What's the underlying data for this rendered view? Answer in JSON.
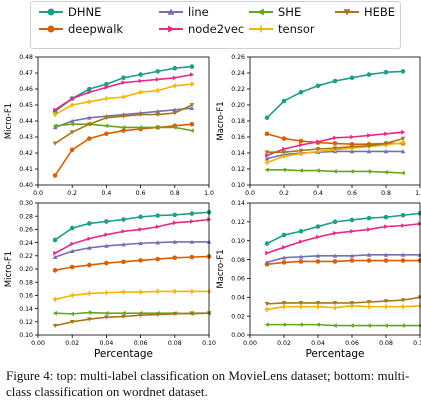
{
  "legend": [
    {
      "name": "DHNE",
      "color": "#1f9e89",
      "marker": "circle"
    },
    {
      "name": "deepwalk",
      "color": "#d95f02",
      "marker": "circle"
    },
    {
      "name": "line",
      "color": "#7570b3",
      "marker": "triangle-up"
    },
    {
      "name": "node2vec",
      "color": "#e7298a",
      "marker": "triangle-right"
    },
    {
      "name": "SHE",
      "color": "#66a61e",
      "marker": "triangle-left"
    },
    {
      "name": "tensor",
      "color": "#f5b400",
      "marker": "plus"
    },
    {
      "name": "HEBE",
      "color": "#a6761d",
      "marker": "triangle-down"
    }
  ],
  "caption": "Figure 4: top: multi-label classification on MovieLens dataset; bottom: multi-class classification on wordnet dataset.",
  "chart_data": [
    {
      "type": "line",
      "xlabel": "",
      "ylabel": "Micro-F1",
      "xlim": [
        0,
        1.0
      ],
      "ylim": [
        0.4,
        0.48
      ],
      "xticks": [
        "0.0",
        "0.2",
        "0.4",
        "0.6",
        "0.8",
        "1.0"
      ],
      "yticks": [
        "0.40",
        "0.41",
        "0.42",
        "0.43",
        "0.44",
        "0.45",
        "0.46",
        "0.47",
        "0.48"
      ],
      "x": [
        0.1,
        0.2,
        0.3,
        0.4,
        0.5,
        0.6,
        0.7,
        0.8,
        0.9
      ],
      "series": [
        {
          "name": "DHNE",
          "values": [
            0.446,
            0.454,
            0.46,
            0.463,
            0.467,
            0.469,
            0.471,
            0.473,
            0.474
          ]
        },
        {
          "name": "deepwalk",
          "values": [
            0.406,
            0.422,
            0.429,
            0.432,
            0.434,
            0.435,
            0.436,
            0.437,
            0.438
          ]
        },
        {
          "name": "line",
          "values": [
            0.436,
            0.44,
            0.442,
            0.443,
            0.444,
            0.445,
            0.446,
            0.447,
            0.448
          ]
        },
        {
          "name": "node2vec",
          "values": [
            0.447,
            0.454,
            0.458,
            0.461,
            0.464,
            0.465,
            0.466,
            0.467,
            0.469
          ]
        },
        {
          "name": "SHE",
          "values": [
            0.437,
            0.438,
            0.438,
            0.437,
            0.436,
            0.436,
            0.436,
            0.436,
            0.434
          ]
        },
        {
          "name": "tensor",
          "values": [
            0.444,
            0.45,
            0.452,
            0.454,
            0.455,
            0.458,
            0.459,
            0.462,
            0.463
          ]
        },
        {
          "name": "HEBE",
          "values": [
            0.426,
            0.433,
            0.438,
            0.442,
            0.443,
            0.444,
            0.444,
            0.445,
            0.45
          ]
        }
      ]
    },
    {
      "type": "line",
      "xlabel": "",
      "ylabel": "Macro-F1",
      "xlim": [
        0,
        1.0
      ],
      "ylim": [
        0.1,
        0.26
      ],
      "xticks": [
        "0.0",
        "0.2",
        "0.4",
        "0.6",
        "0.8",
        "1.0"
      ],
      "yticks": [
        "0.10",
        "0.12",
        "0.14",
        "0.16",
        "0.18",
        "0.20",
        "0.22",
        "0.24",
        "0.26"
      ],
      "x": [
        0.1,
        0.2,
        0.3,
        0.4,
        0.5,
        0.6,
        0.7,
        0.8,
        0.9
      ],
      "series": [
        {
          "name": "DHNE",
          "values": [
            0.184,
            0.205,
            0.216,
            0.224,
            0.23,
            0.234,
            0.238,
            0.241,
            0.242
          ]
        },
        {
          "name": "deepwalk",
          "values": [
            0.164,
            0.158,
            0.155,
            0.153,
            0.152,
            0.151,
            0.151,
            0.152,
            0.152
          ]
        },
        {
          "name": "line",
          "values": [
            0.133,
            0.138,
            0.14,
            0.141,
            0.142,
            0.142,
            0.142,
            0.142,
            0.142
          ]
        },
        {
          "name": "node2vec",
          "values": [
            0.137,
            0.145,
            0.15,
            0.154,
            0.159,
            0.16,
            0.162,
            0.164,
            0.166
          ]
        },
        {
          "name": "SHE",
          "values": [
            0.119,
            0.119,
            0.118,
            0.118,
            0.117,
            0.117,
            0.117,
            0.116,
            0.115
          ]
        },
        {
          "name": "tensor",
          "values": [
            0.128,
            0.136,
            0.139,
            0.142,
            0.144,
            0.146,
            0.148,
            0.15,
            0.153
          ]
        },
        {
          "name": "HEBE",
          "values": [
            0.141,
            0.141,
            0.143,
            0.145,
            0.146,
            0.148,
            0.149,
            0.152,
            0.158
          ]
        }
      ]
    },
    {
      "type": "line",
      "xlabel": "Percentage",
      "ylabel": "Micro-F1",
      "xlim": [
        0,
        0.1
      ],
      "ylim": [
        0.1,
        0.3
      ],
      "xticks": [
        "0.00",
        "0.02",
        "0.04",
        "0.06",
        "0.08",
        "0.10"
      ],
      "yticks": [
        "0.10",
        "0.12",
        "0.14",
        "0.16",
        "0.18",
        "0.20",
        "0.22",
        "0.24",
        "0.26",
        "0.28",
        "0.30"
      ],
      "x": [
        0.01,
        0.02,
        0.03,
        0.04,
        0.05,
        0.06,
        0.07,
        0.08,
        0.09,
        0.1
      ],
      "series": [
        {
          "name": "DHNE",
          "values": [
            0.244,
            0.262,
            0.269,
            0.272,
            0.275,
            0.279,
            0.281,
            0.282,
            0.284,
            0.286
          ]
        },
        {
          "name": "deepwalk",
          "values": [
            0.198,
            0.203,
            0.206,
            0.209,
            0.211,
            0.213,
            0.215,
            0.217,
            0.218,
            0.219
          ]
        },
        {
          "name": "line",
          "values": [
            0.218,
            0.227,
            0.232,
            0.235,
            0.237,
            0.239,
            0.24,
            0.241,
            0.241,
            0.241
          ]
        },
        {
          "name": "node2vec",
          "values": [
            0.224,
            0.238,
            0.246,
            0.252,
            0.257,
            0.26,
            0.264,
            0.27,
            0.272,
            0.275
          ]
        },
        {
          "name": "SHE",
          "values": [
            0.133,
            0.132,
            0.134,
            0.133,
            0.133,
            0.133,
            0.133,
            0.133,
            0.132,
            0.133
          ]
        },
        {
          "name": "tensor",
          "values": [
            0.154,
            0.16,
            0.163,
            0.164,
            0.165,
            0.165,
            0.166,
            0.166,
            0.166,
            0.166
          ]
        },
        {
          "name": "HEBE",
          "values": [
            0.114,
            0.12,
            0.124,
            0.127,
            0.128,
            0.13,
            0.131,
            0.132,
            0.133,
            0.133
          ]
        }
      ]
    },
    {
      "type": "line",
      "xlabel": "Percentage",
      "ylabel": "Macro-F1",
      "xlim": [
        0,
        0.1
      ],
      "ylim": [
        0.0,
        0.14
      ],
      "xticks": [
        "0.00",
        "0.02",
        "0.04",
        "0.06",
        "0.08",
        "0.10"
      ],
      "yticks": [
        "0.00",
        "0.02",
        "0.04",
        "0.06",
        "0.08",
        "0.10",
        "0.12",
        "0.14"
      ],
      "x": [
        0.01,
        0.02,
        0.03,
        0.04,
        0.05,
        0.06,
        0.07,
        0.08,
        0.09,
        0.1
      ],
      "series": [
        {
          "name": "DHNE",
          "values": [
            0.097,
            0.106,
            0.11,
            0.115,
            0.12,
            0.122,
            0.124,
            0.125,
            0.127,
            0.129
          ]
        },
        {
          "name": "deepwalk",
          "values": [
            0.075,
            0.077,
            0.078,
            0.078,
            0.078,
            0.079,
            0.079,
            0.079,
            0.079,
            0.079
          ]
        },
        {
          "name": "line",
          "values": [
            0.077,
            0.082,
            0.083,
            0.084,
            0.084,
            0.084,
            0.085,
            0.085,
            0.085,
            0.085
          ]
        },
        {
          "name": "node2vec",
          "values": [
            0.087,
            0.093,
            0.099,
            0.104,
            0.108,
            0.11,
            0.112,
            0.115,
            0.116,
            0.118
          ]
        },
        {
          "name": "SHE",
          "values": [
            0.011,
            0.011,
            0.011,
            0.011,
            0.01,
            0.01,
            0.01,
            0.01,
            0.01,
            0.01
          ]
        },
        {
          "name": "tensor",
          "values": [
            0.027,
            0.03,
            0.03,
            0.03,
            0.029,
            0.031,
            0.03,
            0.03,
            0.03,
            0.031
          ]
        },
        {
          "name": "HEBE",
          "values": [
            0.033,
            0.034,
            0.034,
            0.034,
            0.034,
            0.034,
            0.035,
            0.036,
            0.037,
            0.04
          ]
        }
      ]
    }
  ]
}
